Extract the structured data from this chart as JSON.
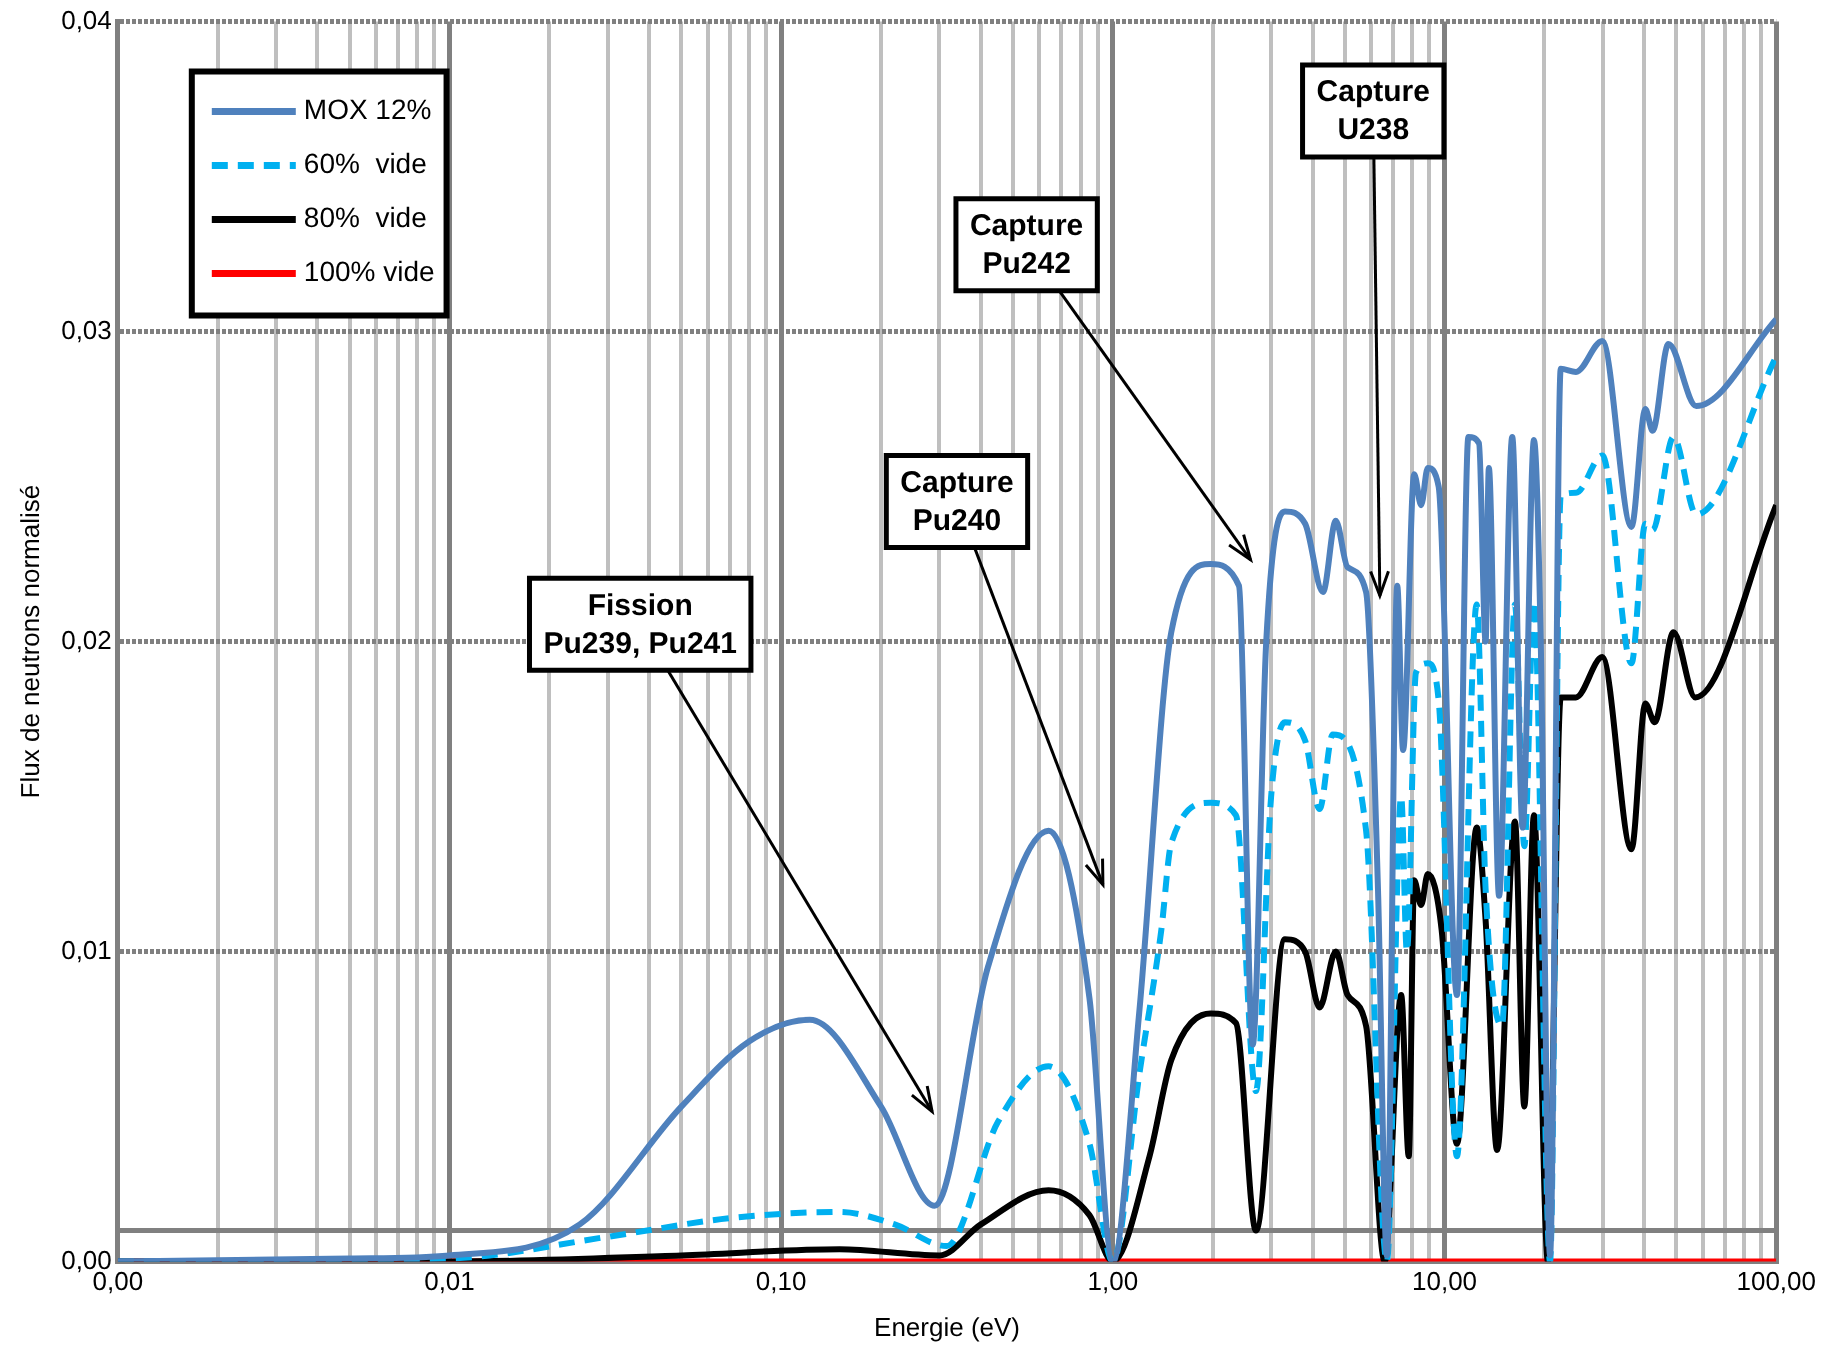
{
  "chart_data": {
    "type": "line",
    "xlabel": "Energie (eV)",
    "ylabel": "Flux de neutrons normalisé",
    "log": "x",
    "grid": true,
    "legend": "top left",
    "marker": "none",
    "xlim": [
      0.001,
      100
    ],
    "ylim": [
      0,
      0.04
    ],
    "xticks": [
      {
        "value": 0.001,
        "label": "0,00"
      },
      {
        "value": 0.002,
        "label": null
      },
      {
        "value": 0.003,
        "label": null
      },
      {
        "value": 0.004,
        "label": null
      },
      {
        "value": 0.005,
        "label": null
      },
      {
        "value": 0.006,
        "label": null
      },
      {
        "value": 0.007,
        "label": null
      },
      {
        "value": 0.008,
        "label": null
      },
      {
        "value": 0.009,
        "label": null
      },
      {
        "value": 0.01,
        "label": "0,01"
      },
      {
        "value": 0.02,
        "label": null
      },
      {
        "value": 0.03,
        "label": null
      },
      {
        "value": 0.04,
        "label": null
      },
      {
        "value": 0.05,
        "label": null
      },
      {
        "value": 0.06,
        "label": null
      },
      {
        "value": 0.07,
        "label": null
      },
      {
        "value": 0.08,
        "label": null
      },
      {
        "value": 0.09,
        "label": null
      },
      {
        "value": 0.1,
        "label": "0,10"
      },
      {
        "value": 0.2,
        "label": null
      },
      {
        "value": 0.3,
        "label": null
      },
      {
        "value": 0.4,
        "label": null
      },
      {
        "value": 0.5,
        "label": null
      },
      {
        "value": 0.6,
        "label": null
      },
      {
        "value": 0.7,
        "label": null
      },
      {
        "value": 0.8,
        "label": null
      },
      {
        "value": 0.9,
        "label": null
      },
      {
        "value": 1,
        "label": "1,00"
      },
      {
        "value": 2,
        "label": null
      },
      {
        "value": 3,
        "label": null
      },
      {
        "value": 4,
        "label": null
      },
      {
        "value": 5,
        "label": null
      },
      {
        "value": 6,
        "label": null
      },
      {
        "value": 7,
        "label": null
      },
      {
        "value": 8,
        "label": null
      },
      {
        "value": 9,
        "label": null
      },
      {
        "value": 10,
        "label": "10,00"
      },
      {
        "value": 20,
        "label": null
      },
      {
        "value": 30,
        "label": null
      },
      {
        "value": 40,
        "label": null
      },
      {
        "value": 50,
        "label": null
      },
      {
        "value": 60,
        "label": null
      },
      {
        "value": 70,
        "label": null
      },
      {
        "value": 80,
        "label": null
      },
      {
        "value": 90,
        "label": null
      },
      {
        "value": 100,
        "label": "100,00"
      }
    ],
    "yticks": [
      {
        "value": 0,
        "label": "0,00"
      },
      {
        "value": 0.01,
        "label": "0,01"
      },
      {
        "value": 0.02,
        "label": "0,02"
      },
      {
        "value": 0.03,
        "label": "0,03"
      },
      {
        "value": 0.04,
        "label": "0,04"
      }
    ],
    "ref_lines": [
      {
        "axis": "y",
        "value": 0.001,
        "color": "#808080"
      }
    ],
    "series": [
      {
        "name": "MOX 12%",
        "color": "#4f81bd",
        "line_style": "solid",
        "x": [
          0.001,
          0.005,
          0.01,
          0.0247,
          0.05,
          0.08,
          0.122,
          0.2,
          0.29,
          0.42,
          0.64,
          0.85,
          1.0,
          1.2,
          1.5,
          1.97,
          2.4,
          2.64,
          2.9,
          3.3,
          3.8,
          4.3,
          4.7,
          5.1,
          5.8,
          6.3,
          6.7,
          7.2,
          7.5,
          8.1,
          8.5,
          8.9,
          9.6,
          10.9,
          11.8,
          12.7,
          13.3,
          13.6,
          14.6,
          16,
          17.2,
          18.6,
          19.5,
          20.8,
          22.4,
          24.9,
          29.9,
          36.6,
          40.3,
          42.4,
          47.3,
          57.4,
          100
        ],
        "values": [
          0,
          0.0001,
          0.0002,
          0.0012,
          0.005,
          0.0071,
          0.0078,
          0.005,
          0.0018,
          0.0095,
          0.0139,
          0.0085,
          0,
          0.008,
          0.0203,
          0.0225,
          0.0218,
          0.007,
          0.02,
          0.0242,
          0.0238,
          0.0216,
          0.0239,
          0.0224,
          0.0216,
          0.012,
          0.0002,
          0.0218,
          0.0165,
          0.0254,
          0.0244,
          0.0256,
          0.025,
          0.0086,
          0.0266,
          0.0264,
          0.02,
          0.0256,
          0.0118,
          0.0266,
          0.014,
          0.0265,
          0.02,
          0.0002,
          0.0288,
          0.0287,
          0.0297,
          0.0237,
          0.0275,
          0.0268,
          0.0296,
          0.0276,
          0.0304
        ]
      },
      {
        "name": "60%  vide",
        "color": "#00b0f0",
        "line_style": "dashed",
        "x": [
          0.001,
          0.01,
          0.03,
          0.07,
          0.15,
          0.22,
          0.315,
          0.45,
          0.64,
          0.85,
          1.0,
          1.2,
          1.4,
          1.5,
          1.97,
          2.35,
          2.7,
          3.0,
          3.3,
          3.8,
          4.2,
          4.6,
          5.8,
          6.7,
          7.4,
          7.7,
          8.2,
          8.9,
          9.6,
          10.9,
          12.5,
          13.3,
          14.9,
          16.3,
          17.4,
          18.6,
          20.8,
          22.4,
          24.9,
          29.9,
          36.6,
          40.3,
          42.4,
          49,
          57.4,
          100
        ],
        "values": [
          0,
          0.0001,
          0.0008,
          0.0014,
          0.0016,
          0.0012,
          0.0005,
          0.0045,
          0.0063,
          0.0038,
          0,
          0.006,
          0.0107,
          0.0135,
          0.0148,
          0.0144,
          0.0055,
          0.015,
          0.0174,
          0.0168,
          0.0146,
          0.017,
          0.0139,
          0,
          0.015,
          0.01,
          0.019,
          0.0193,
          0.0181,
          0.0034,
          0.0212,
          0.012,
          0.0076,
          0.0212,
          0.0134,
          0.0213,
          0,
          0.0247,
          0.0248,
          0.026,
          0.0193,
          0.0238,
          0.0236,
          0.0266,
          0.0241,
          0.0292
        ]
      },
      {
        "name": "80%  vide",
        "color": "#000000",
        "line_style": "solid",
        "x": [
          0.001,
          0.01,
          0.05,
          0.15,
          0.3,
          0.4,
          0.64,
          0.85,
          1.0,
          1.29,
          1.5,
          1.97,
          2.35,
          2.7,
          3.3,
          3.8,
          4.2,
          4.7,
          5.1,
          5.8,
          6.6,
          7.4,
          7.8,
          8.1,
          8.5,
          8.9,
          9.8,
          10.9,
          12.5,
          13.3,
          14.4,
          16.3,
          17.4,
          18.6,
          20.5,
          22.4,
          24.9,
          29.9,
          36.6,
          40.3,
          43,
          49,
          57,
          100
        ],
        "values": [
          0,
          0,
          0.0002,
          0.0004,
          0.0002,
          0.0012,
          0.0023,
          0.0015,
          0,
          0.0034,
          0.0065,
          0.008,
          0.0077,
          0.001,
          0.0104,
          0.01,
          0.0082,
          0.01,
          0.0086,
          0.0076,
          0,
          0.0086,
          0.0034,
          0.0123,
          0.0115,
          0.0125,
          0.0107,
          0.0038,
          0.014,
          0.011,
          0.0036,
          0.0142,
          0.005,
          0.0144,
          0,
          0.0182,
          0.0182,
          0.0195,
          0.0133,
          0.018,
          0.0174,
          0.0203,
          0.0182,
          0.0244
        ]
      },
      {
        "name": "100% vide",
        "color": "#ff0000",
        "line_style": "solid",
        "x": [
          0.001,
          100
        ],
        "values": [
          0,
          0
        ]
      }
    ],
    "annotations": [
      "Fission\nPu239, Pu241",
      "Capture\nPu240",
      "Capture\nPu242",
      "Capture\nU238"
    ]
  }
}
